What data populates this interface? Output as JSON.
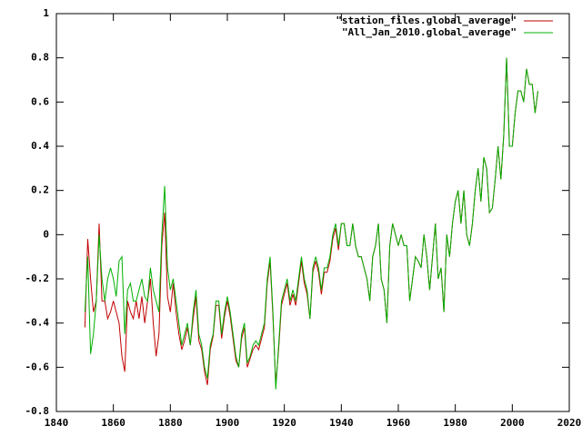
{
  "chart_data": {
    "type": "line",
    "x": [
      1850,
      1851,
      1852,
      1853,
      1854,
      1855,
      1856,
      1857,
      1858,
      1859,
      1860,
      1861,
      1862,
      1863,
      1864,
      1865,
      1866,
      1867,
      1868,
      1869,
      1870,
      1871,
      1872,
      1873,
      1874,
      1875,
      1876,
      1877,
      1878,
      1879,
      1880,
      1881,
      1882,
      1883,
      1884,
      1885,
      1886,
      1887,
      1888,
      1889,
      1890,
      1891,
      1892,
      1893,
      1894,
      1895,
      1896,
      1897,
      1898,
      1899,
      1900,
      1901,
      1902,
      1903,
      1904,
      1905,
      1906,
      1907,
      1908,
      1909,
      1910,
      1911,
      1912,
      1913,
      1914,
      1915,
      1916,
      1917,
      1918,
      1919,
      1920,
      1921,
      1922,
      1923,
      1924,
      1925,
      1926,
      1927,
      1928,
      1929,
      1930,
      1931,
      1932,
      1933,
      1934,
      1935,
      1936,
      1937,
      1938,
      1939,
      1940,
      1941,
      1942,
      1943,
      1944,
      1945,
      1946,
      1947,
      1948,
      1949,
      1950,
      1951,
      1952,
      1953,
      1954,
      1955,
      1956,
      1957,
      1958,
      1959,
      1960,
      1961,
      1962,
      1963,
      1964,
      1965,
      1966,
      1967,
      1968,
      1969,
      1970,
      1971,
      1972,
      1973,
      1974,
      1975,
      1976,
      1977,
      1978,
      1979,
      1980,
      1981,
      1982,
      1983,
      1984,
      1985,
      1986,
      1987,
      1988,
      1989,
      1990,
      1991,
      1992,
      1993,
      1994,
      1995,
      1996,
      1997,
      1998,
      1999,
      2000,
      2001,
      2002,
      2003,
      2004,
      2005,
      2006,
      2007,
      2008,
      2009
    ],
    "series": [
      {
        "name": "\"station_files.global_average\"",
        "color": "#c00000",
        "values": [
          -0.42,
          -0.02,
          -0.2,
          -0.35,
          -0.3,
          0.05,
          -0.3,
          -0.3,
          -0.38,
          -0.35,
          -0.3,
          -0.35,
          -0.4,
          -0.55,
          -0.62,
          -0.3,
          -0.35,
          -0.38,
          -0.3,
          -0.38,
          -0.28,
          -0.4,
          -0.3,
          -0.2,
          -0.4,
          -0.55,
          -0.45,
          -0.05,
          0.1,
          -0.28,
          -0.35,
          -0.22,
          -0.35,
          -0.45,
          -0.52,
          -0.48,
          -0.42,
          -0.5,
          -0.38,
          -0.28,
          -0.48,
          -0.52,
          -0.62,
          -0.68,
          -0.52,
          -0.46,
          -0.32,
          -0.32,
          -0.47,
          -0.37,
          -0.3,
          -0.37,
          -0.47,
          -0.57,
          -0.6,
          -0.47,
          -0.42,
          -0.6,
          -0.56,
          -0.52,
          -0.5,
          -0.52,
          -0.47,
          -0.42,
          -0.22,
          -0.12,
          -0.37,
          -0.68,
          -0.52,
          -0.32,
          -0.27,
          -0.22,
          -0.32,
          -0.27,
          -0.32,
          -0.22,
          -0.12,
          -0.22,
          -0.27,
          -0.38,
          -0.17,
          -0.12,
          -0.17,
          -0.27,
          -0.17,
          -0.17,
          -0.12,
          -0.02,
          0.03,
          -0.07,
          0.05,
          0.05,
          -0.05,
          -0.05,
          0.05,
          -0.05,
          -0.1,
          -0.1,
          -0.15,
          -0.2,
          -0.3,
          -0.1,
          -0.05,
          0.05,
          -0.2,
          -0.25,
          -0.4,
          -0.05,
          0.05,
          0.0,
          -0.05,
          0.0,
          -0.05,
          -0.05,
          -0.3,
          -0.2,
          -0.1,
          -0.12,
          -0.15,
          0.0,
          -0.1,
          -0.25,
          -0.1,
          0.05,
          -0.2,
          -0.15,
          -0.35,
          0.0,
          -0.1,
          0.05,
          0.15,
          0.2,
          0.05,
          0.2,
          0.0,
          -0.05,
          0.05,
          0.2,
          0.3,
          0.15,
          0.35,
          0.3,
          0.1,
          0.12,
          0.25,
          0.4,
          0.25,
          0.45,
          0.8,
          0.4,
          0.4,
          0.55,
          0.65,
          0.65,
          0.6,
          0.75,
          0.68,
          0.68,
          0.55,
          0.65
        ]
      },
      {
        "name": "\"All_Jan_2010.global_average\"",
        "color": "#00b000",
        "values": [
          -0.35,
          -0.1,
          -0.54,
          -0.45,
          -0.3,
          0.0,
          -0.2,
          -0.3,
          -0.2,
          -0.15,
          -0.2,
          -0.28,
          -0.12,
          -0.1,
          -0.45,
          -0.25,
          -0.22,
          -0.3,
          -0.3,
          -0.25,
          -0.2,
          -0.28,
          -0.3,
          -0.15,
          -0.25,
          -0.3,
          -0.35,
          0.0,
          0.22,
          -0.15,
          -0.25,
          -0.2,
          -0.3,
          -0.4,
          -0.5,
          -0.45,
          -0.4,
          -0.5,
          -0.35,
          -0.25,
          -0.45,
          -0.5,
          -0.6,
          -0.65,
          -0.5,
          -0.45,
          -0.3,
          -0.3,
          -0.45,
          -0.35,
          -0.28,
          -0.35,
          -0.45,
          -0.55,
          -0.6,
          -0.45,
          -0.4,
          -0.58,
          -0.55,
          -0.5,
          -0.48,
          -0.5,
          -0.45,
          -0.4,
          -0.2,
          -0.1,
          -0.35,
          -0.7,
          -0.5,
          -0.3,
          -0.25,
          -0.2,
          -0.3,
          -0.25,
          -0.3,
          -0.2,
          -0.1,
          -0.2,
          -0.25,
          -0.38,
          -0.15,
          -0.1,
          -0.15,
          -0.25,
          -0.15,
          -0.15,
          -0.1,
          0.0,
          0.05,
          -0.05,
          0.05,
          0.05,
          -0.05,
          -0.05,
          0.05,
          -0.05,
          -0.1,
          -0.1,
          -0.15,
          -0.2,
          -0.3,
          -0.1,
          -0.05,
          0.05,
          -0.2,
          -0.25,
          -0.4,
          -0.05,
          0.05,
          0.0,
          -0.05,
          0.0,
          -0.05,
          -0.05,
          -0.3,
          -0.2,
          -0.1,
          -0.12,
          -0.15,
          0.0,
          -0.1,
          -0.25,
          -0.1,
          0.05,
          -0.2,
          -0.15,
          -0.35,
          0.0,
          -0.1,
          0.05,
          0.15,
          0.2,
          0.05,
          0.2,
          0.0,
          -0.05,
          0.05,
          0.2,
          0.3,
          0.15,
          0.35,
          0.3,
          0.1,
          0.12,
          0.25,
          0.4,
          0.25,
          0.45,
          0.8,
          0.4,
          0.4,
          0.55,
          0.65,
          0.65,
          0.6,
          0.75,
          0.68,
          0.68,
          0.55,
          0.65
        ]
      }
    ],
    "xlim": [
      1840,
      2020
    ],
    "xticks": [
      1840,
      1860,
      1880,
      1900,
      1920,
      1940,
      1960,
      1980,
      2000,
      2020
    ],
    "ylim": [
      -0.8,
      1
    ],
    "yticks": [
      -0.8,
      -0.6,
      -0.4,
      -0.2,
      0,
      0.2,
      0.4,
      0.6,
      0.8,
      1
    ],
    "legend": "top-right"
  }
}
